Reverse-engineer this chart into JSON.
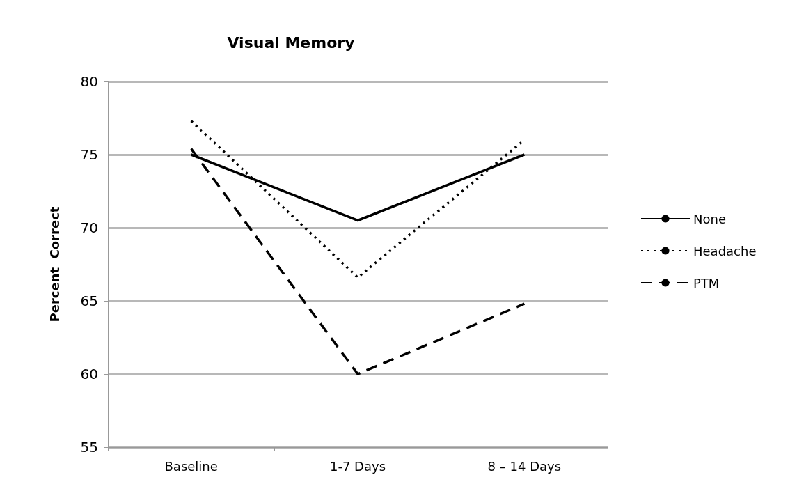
{
  "chart_data": {
    "type": "line",
    "title": "Visual Memory",
    "ylabel": "Percent  Correct",
    "categories": [
      "Baseline",
      "1-7 Days",
      "8 – 14 Days"
    ],
    "series": [
      {
        "name": "None",
        "color": "#000000",
        "line_style": "solid",
        "values": [
          75,
          70.5,
          75
        ]
      },
      {
        "name": "Headache",
        "color": "#000000",
        "line_style": "dotted",
        "values": [
          77.3,
          66.6,
          76
        ]
      },
      {
        "name": "PTM",
        "color": "#000000",
        "line_style": "dashed",
        "values": [
          75.4,
          60,
          64.8
        ]
      }
    ],
    "ylim": [
      55,
      80
    ],
    "yticks": [
      55,
      60,
      65,
      70,
      75,
      80
    ],
    "grid": "y",
    "legend": "right",
    "marker": "none"
  }
}
